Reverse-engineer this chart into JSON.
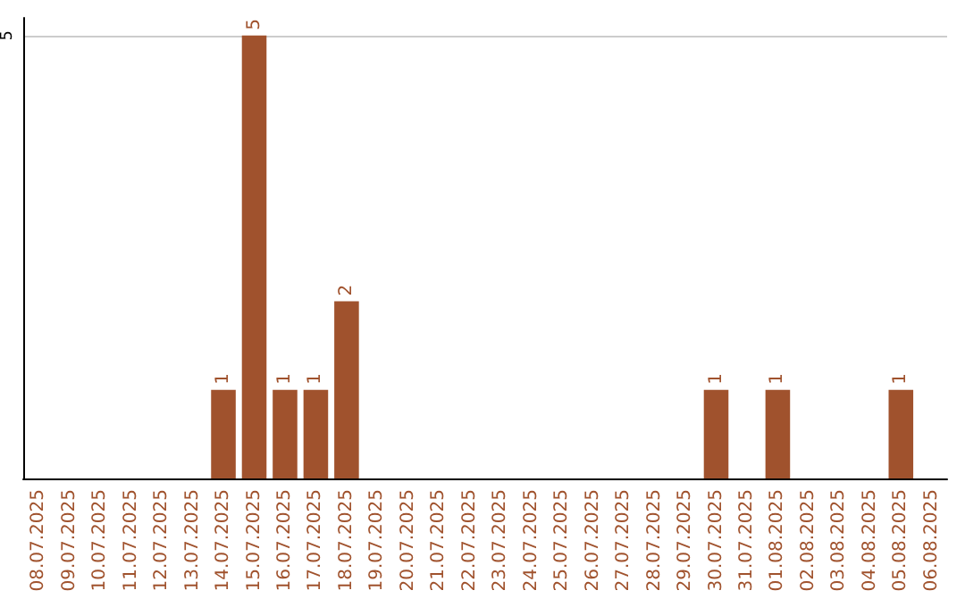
{
  "chart_data": {
    "type": "bar",
    "categories": [
      "08.07.2025",
      "09.07.2025",
      "10.07.2025",
      "11.07.2025",
      "12.07.2025",
      "13.07.2025",
      "14.07.2025",
      "15.07.2025",
      "16.07.2025",
      "17.07.2025",
      "18.07.2025",
      "19.07.2025",
      "20.07.2025",
      "21.07.2025",
      "22.07.2025",
      "23.07.2025",
      "24.07.2025",
      "25.07.2025",
      "26.07.2025",
      "27.07.2025",
      "28.07.2025",
      "29.07.2025",
      "30.07.2025",
      "31.07.2025",
      "01.08.2025",
      "02.08.2025",
      "03.08.2025",
      "04.08.2025",
      "05.08.2025",
      "06.08.2025"
    ],
    "values": [
      0,
      0,
      0,
      0,
      0,
      0,
      1,
      5,
      1,
      1,
      2,
      0,
      0,
      0,
      0,
      0,
      0,
      0,
      0,
      0,
      0,
      0,
      1,
      0,
      1,
      0,
      0,
      0,
      1,
      0
    ],
    "value_labels": [
      null,
      null,
      null,
      null,
      null,
      null,
      "1",
      "5",
      "1",
      "1",
      "2",
      null,
      null,
      null,
      null,
      null,
      null,
      null,
      null,
      null,
      null,
      null,
      "1",
      null,
      "1",
      null,
      null,
      null,
      "1",
      null
    ],
    "color": "#a0522d",
    "ylim": [
      0,
      5.2
    ],
    "yticks": [
      5
    ],
    "grid": "y"
  }
}
